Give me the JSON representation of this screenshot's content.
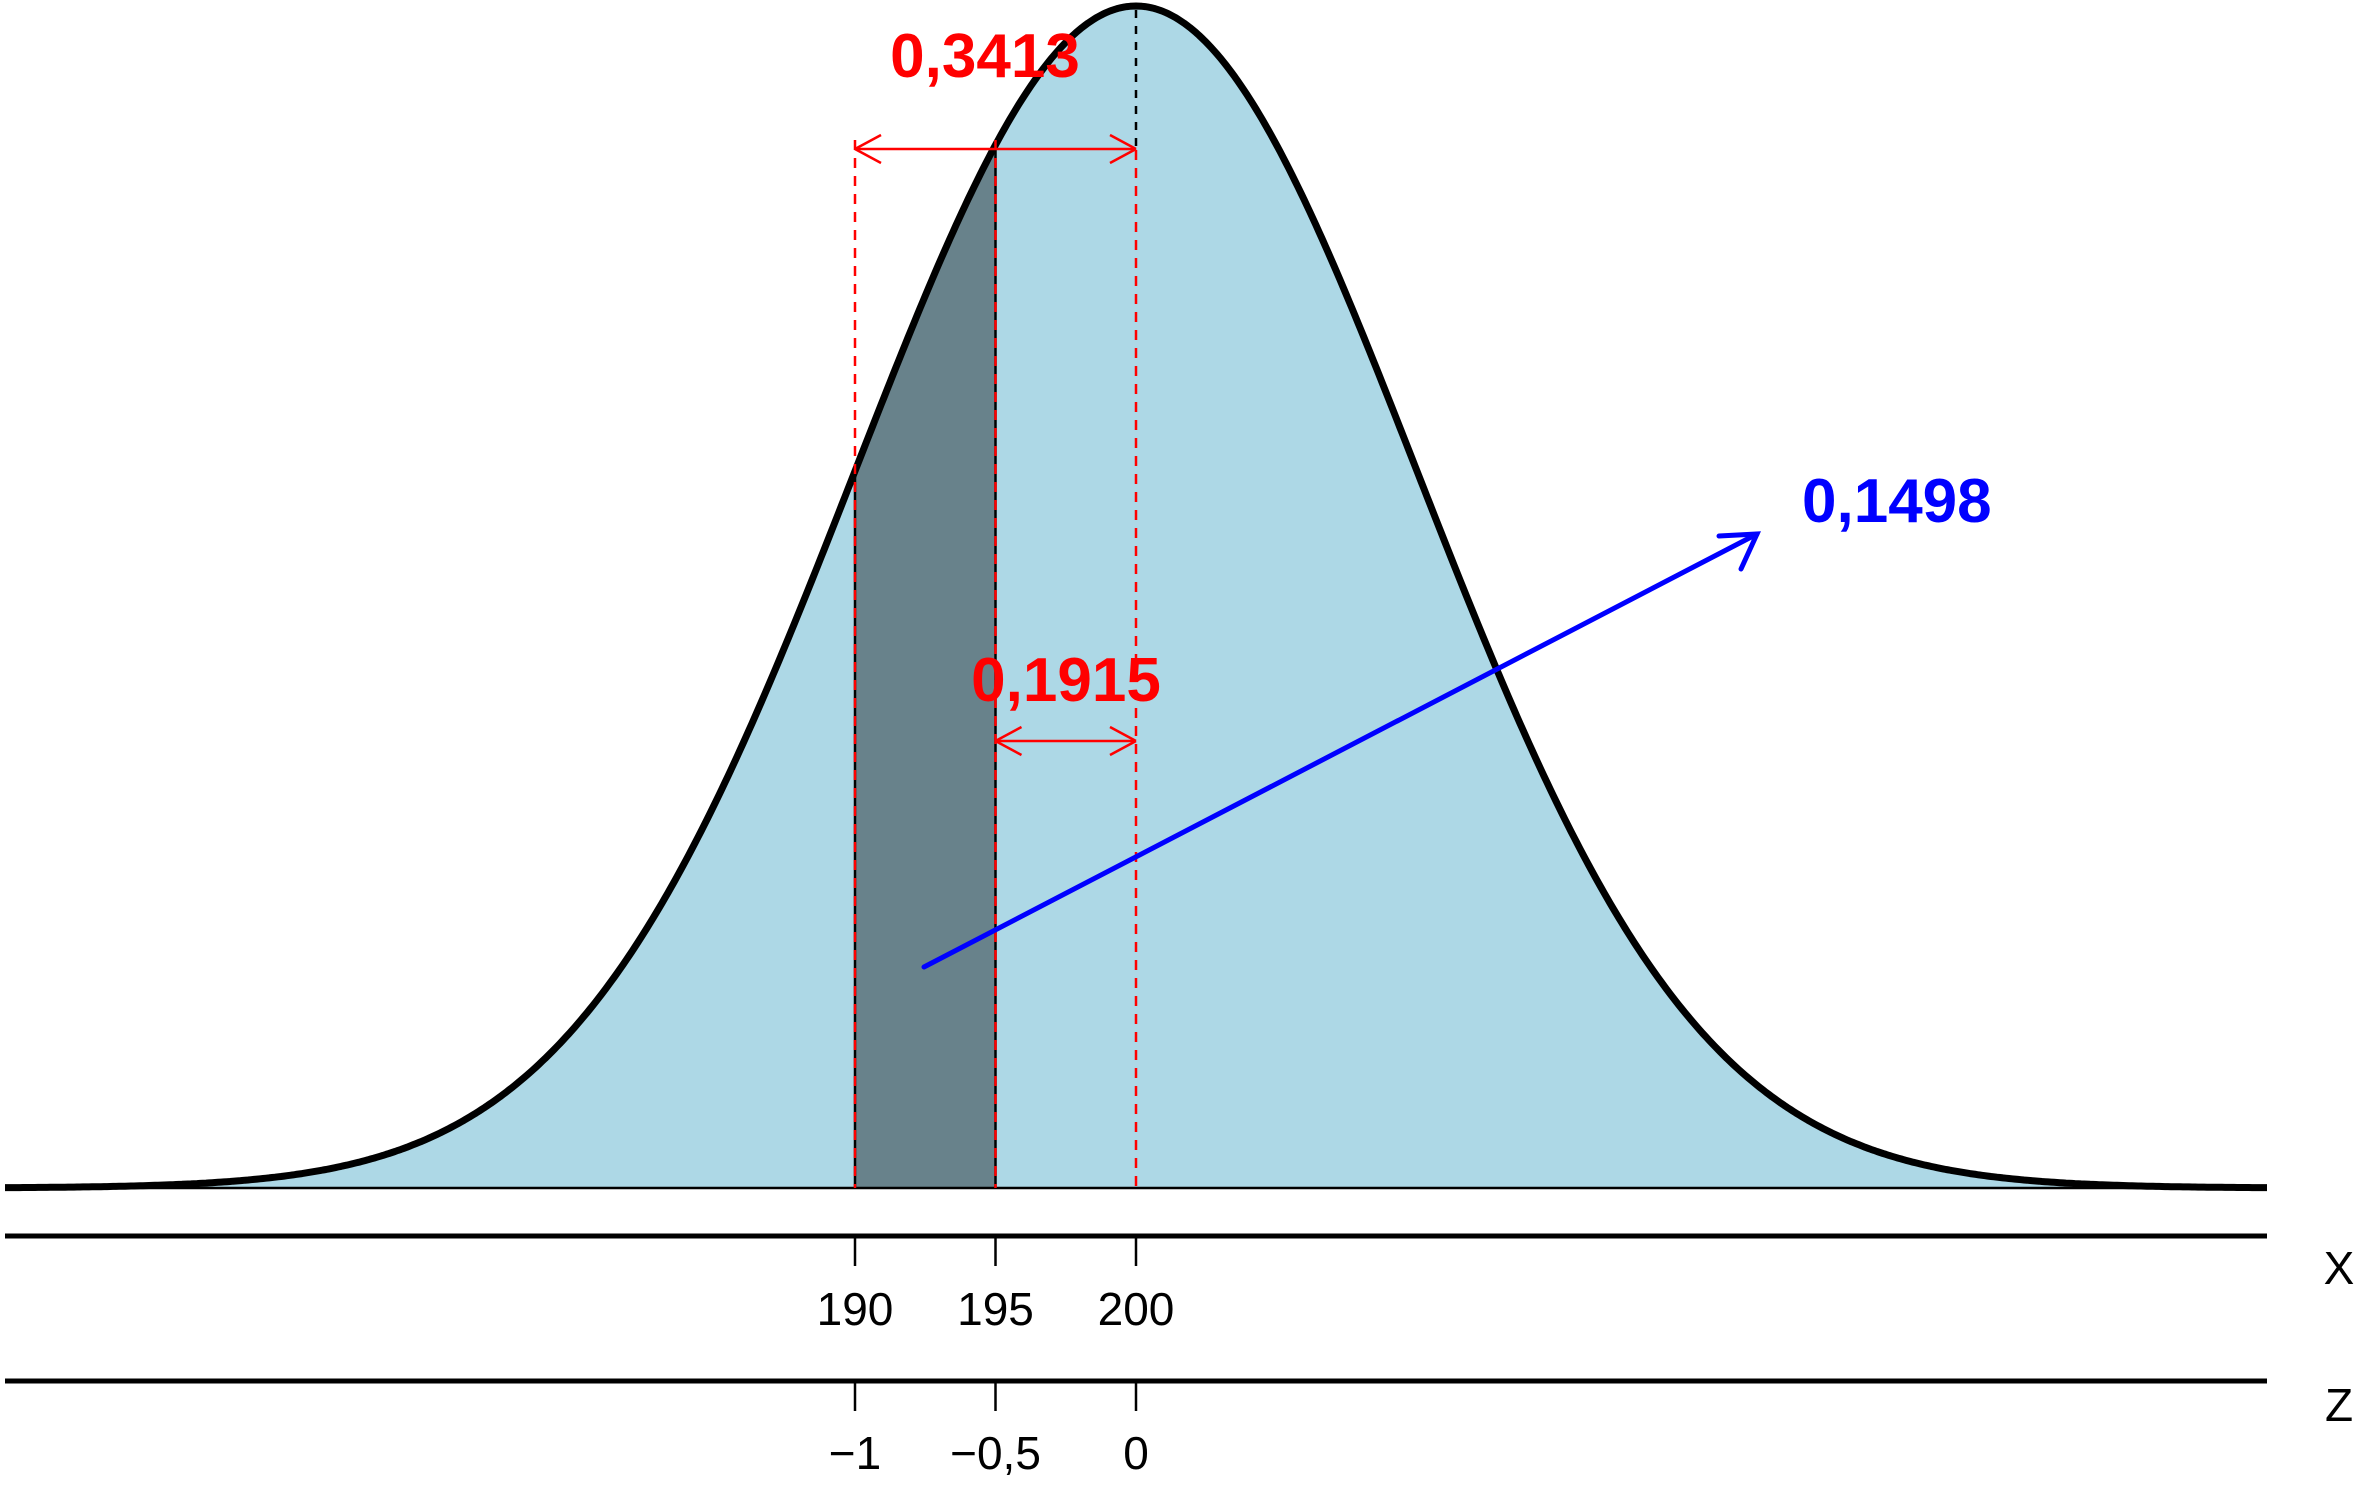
{
  "diagram": {
    "distribution": {
      "mean": 200,
      "sd": 10
    },
    "x_axis": {
      "name": "X",
      "ticks": [
        {
          "value": 190,
          "label": "190"
        },
        {
          "value": 195,
          "label": "195"
        },
        {
          "value": 200,
          "label": "200"
        }
      ]
    },
    "z_axis": {
      "name": "Z",
      "ticks": [
        {
          "value": -1,
          "label": "−1"
        },
        {
          "value": -0.5,
          "label": "−0,5"
        },
        {
          "value": 0,
          "label": "0"
        }
      ]
    },
    "shaded_region": {
      "from": 190,
      "to": 195
    },
    "annotations": {
      "area_190_200": {
        "text": "0,3413",
        "color": "#ff0000"
      },
      "area_195_200": {
        "text": "0,1915",
        "color": "#ff0000"
      },
      "area_190_195": {
        "text": "0,1498",
        "color": "#0000ff"
      }
    },
    "colors": {
      "curve_fill": "#add8e6",
      "shaded_fill": "#68828b",
      "curve_stroke": "#000000"
    }
  }
}
